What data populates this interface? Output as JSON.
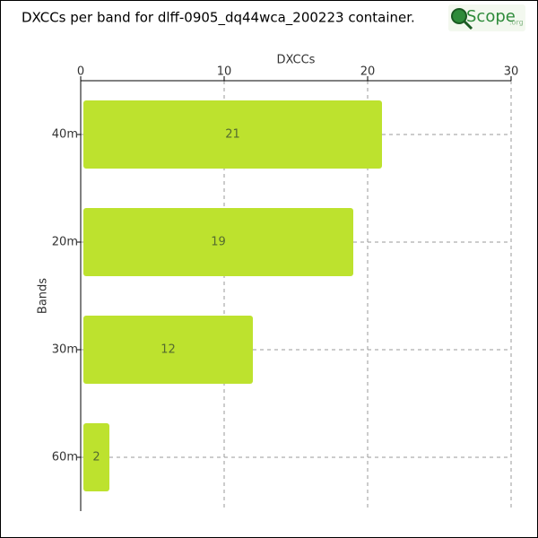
{
  "chart_data": {
    "type": "hbar",
    "title": "DXCCs per band for dlff-0905_dq44wca_200223 container.",
    "logo": "Scope",
    "logo_suffix": ".org",
    "x_label": "DXCCs",
    "y_label": "Bands",
    "categories": [
      "40m",
      "20m",
      "30m",
      "60m"
    ],
    "values": [
      21,
      19,
      12,
      2
    ],
    "color": "#bde22e",
    "xlim": [
      0,
      30
    ],
    "xticks": [
      0,
      10,
      20,
      30
    ],
    "grid": true
  }
}
